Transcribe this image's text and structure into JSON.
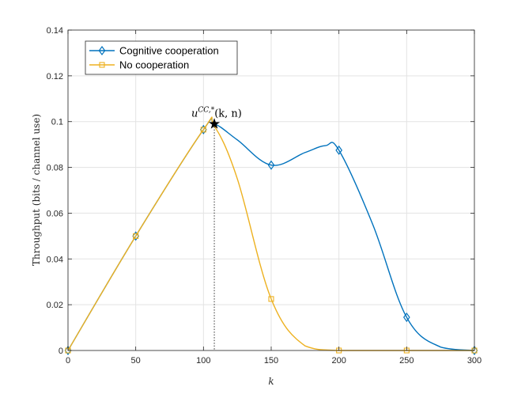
{
  "chart_data": {
    "type": "line",
    "title": "",
    "xlabel": "k",
    "ylabel": "Throughput (bits / channel use)",
    "xlim": [
      0,
      300
    ],
    "ylim": [
      0,
      0.14
    ],
    "xticks": [
      0,
      50,
      100,
      150,
      200,
      250,
      300
    ],
    "yticks": [
      0,
      0.02,
      0.04,
      0.06,
      0.08,
      0.1,
      0.12,
      0.14
    ],
    "xtick_labels": [
      "0",
      "50",
      "100",
      "150",
      "200",
      "250",
      "300"
    ],
    "ytick_labels": [
      "0",
      "0.02",
      "0.04",
      "0.06",
      "0.08",
      "0.1",
      "0.12",
      "0.14"
    ],
    "grid": true,
    "legend_position": "top-left",
    "series": [
      {
        "name": "Cognitive cooperation",
        "color": "#0072BD",
        "marker": "diamond",
        "x": [
          0,
          50,
          100,
          108,
          125,
          150,
          175,
          190,
          200,
          225,
          250,
          275,
          300
        ],
        "y": [
          0,
          0.05,
          0.0965,
          0.099,
          0.092,
          0.081,
          0.0865,
          0.0895,
          0.0875,
          0.055,
          0.0145,
          0.0015,
          0
        ],
        "marker_x": [
          0,
          50,
          100,
          150,
          200,
          250,
          300
        ],
        "marker_y": [
          0,
          0.05,
          0.0965,
          0.081,
          0.0875,
          0.0145,
          0
        ]
      },
      {
        "name": "No cooperation",
        "color": "#EDB120",
        "marker": "square",
        "x": [
          0,
          50,
          100,
          108,
          125,
          150,
          175,
          200,
          250,
          300
        ],
        "y": [
          0,
          0.05,
          0.0965,
          0.098,
          0.075,
          0.0225,
          0.002,
          0,
          0,
          0
        ],
        "marker_x": [
          0,
          50,
          100,
          150,
          200,
          250,
          300
        ],
        "marker_y": [
          0,
          0.05,
          0.0965,
          0.0225,
          0,
          0,
          0
        ]
      }
    ],
    "annotation": {
      "base": "u",
      "superscript": "CC,*",
      "rest": "(k, n)",
      "x": 108,
      "y": 0.099,
      "marker": "star"
    }
  }
}
